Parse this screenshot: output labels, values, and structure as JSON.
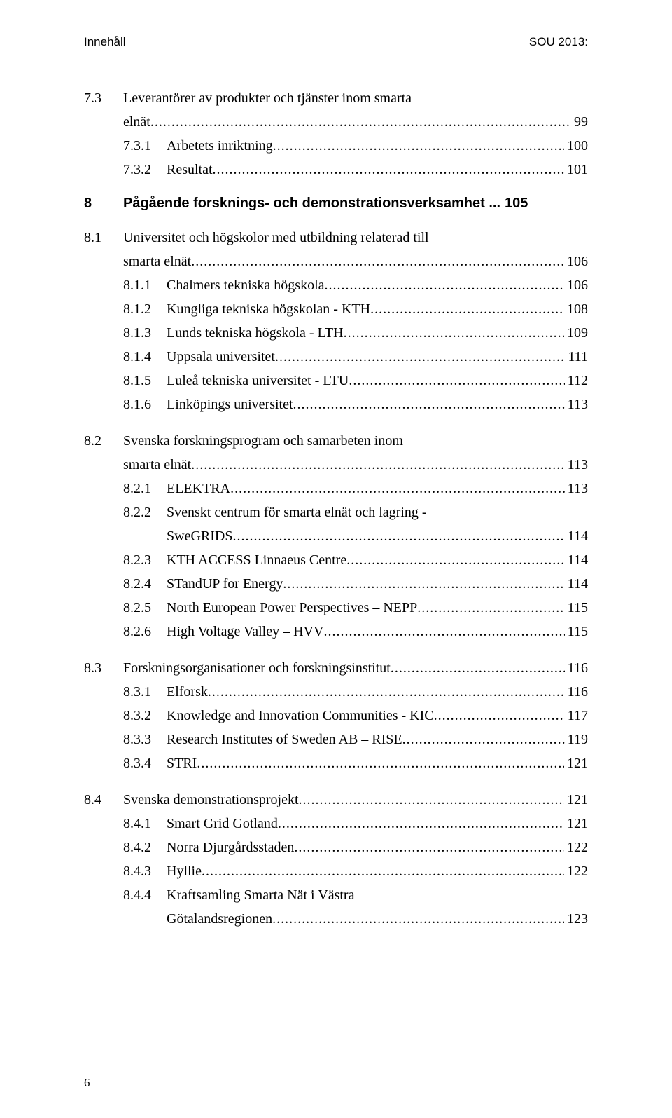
{
  "header": {
    "left": "Innehåll",
    "right": "SOU 2013:"
  },
  "pageNumber": "6",
  "dots": "........................................................................................................................................................................................................",
  "toc": [
    {
      "type": "l1",
      "num": "7.3",
      "title": "Leverantörer av produkter och tjänster inom smarta",
      "page": "",
      "noleader": true
    },
    {
      "type": "cont1",
      "title": "elnät",
      "page": "99"
    },
    {
      "type": "l2",
      "num": "7.3.1",
      "title": "Arbetets inriktning",
      "page": "100"
    },
    {
      "type": "l2",
      "num": "7.3.2",
      "title": "Resultat",
      "page": "101"
    },
    {
      "type": "chapter",
      "num": "8",
      "title": "Pågående forsknings- och demonstrationsverksamhet",
      "page": "105",
      "ellipses": " ... "
    },
    {
      "type": "l1",
      "num": "8.1",
      "title": "Universitet och högskolor med utbildning relaterad till",
      "page": "",
      "noleader": true,
      "gap": true
    },
    {
      "type": "cont1",
      "title": "smarta elnät",
      "page": "106"
    },
    {
      "type": "l2",
      "num": "8.1.1",
      "title": "Chalmers tekniska högskola",
      "page": "106"
    },
    {
      "type": "l2",
      "num": "8.1.2",
      "title": "Kungliga tekniska högskolan - KTH",
      "page": "108"
    },
    {
      "type": "l2",
      "num": "8.1.3",
      "title": "Lunds tekniska högskola - LTH",
      "page": "109"
    },
    {
      "type": "l2",
      "num": "8.1.4",
      "title": "Uppsala universitet",
      "page": "111"
    },
    {
      "type": "l2",
      "num": "8.1.5",
      "title": "Luleå tekniska universitet - LTU",
      "page": "112"
    },
    {
      "type": "l2",
      "num": "8.1.6",
      "title": "Linköpings universitet",
      "page": "113"
    },
    {
      "type": "l1",
      "num": "8.2",
      "title": "Svenska forskningsprogram och samarbeten inom",
      "page": "",
      "noleader": true,
      "gap": true
    },
    {
      "type": "cont1",
      "title": "smarta elnät",
      "page": "113"
    },
    {
      "type": "l2",
      "num": "8.2.1",
      "title": "ELEKTRA",
      "page": "113"
    },
    {
      "type": "l2",
      "num": "8.2.2",
      "title": "Svenskt centrum för smarta elnät och lagring -",
      "page": "",
      "noleader": true
    },
    {
      "type": "cont2",
      "title": "SweGRIDS",
      "page": "114"
    },
    {
      "type": "l2",
      "num": "8.2.3",
      "title": "KTH ACCESS Linnaeus Centre",
      "page": "114"
    },
    {
      "type": "l2",
      "num": "8.2.4",
      "title": "STandUP for Energy",
      "page": "114"
    },
    {
      "type": "l2",
      "num": "8.2.5",
      "title": "North European Power Perspectives – NEPP",
      "page": "115"
    },
    {
      "type": "l2",
      "num": "8.2.6",
      "title": "High Voltage Valley – HVV",
      "page": "115"
    },
    {
      "type": "l1",
      "num": "8.3",
      "title": "Forskningsorganisationer och forskningsinstitut",
      "page": "116",
      "gap": true
    },
    {
      "type": "l2",
      "num": "8.3.1",
      "title": "Elforsk",
      "page": "116"
    },
    {
      "type": "l2",
      "num": "8.3.2",
      "title": "Knowledge and Innovation Communities - KIC",
      "page": "117"
    },
    {
      "type": "l2",
      "num": "8.3.3",
      "title": "Research Institutes of Sweden AB – RISE",
      "page": "119"
    },
    {
      "type": "l2",
      "num": "8.3.4",
      "title": "STRI",
      "page": "121"
    },
    {
      "type": "l1",
      "num": "8.4",
      "title": "Svenska demonstrationsprojekt",
      "page": "121",
      "gap": true
    },
    {
      "type": "l2",
      "num": "8.4.1",
      "title": "Smart Grid Gotland",
      "page": "121"
    },
    {
      "type": "l2",
      "num": "8.4.2",
      "title": "Norra Djurgårdsstaden",
      "page": "122"
    },
    {
      "type": "l2",
      "num": "8.4.3",
      "title": "Hyllie",
      "page": "122"
    },
    {
      "type": "l2",
      "num": "8.4.4",
      "title": "Kraftsamling Smarta Nät i Västra",
      "page": "",
      "noleader": true
    },
    {
      "type": "cont2",
      "title": "Götalandsregionen",
      "page": "123"
    }
  ]
}
